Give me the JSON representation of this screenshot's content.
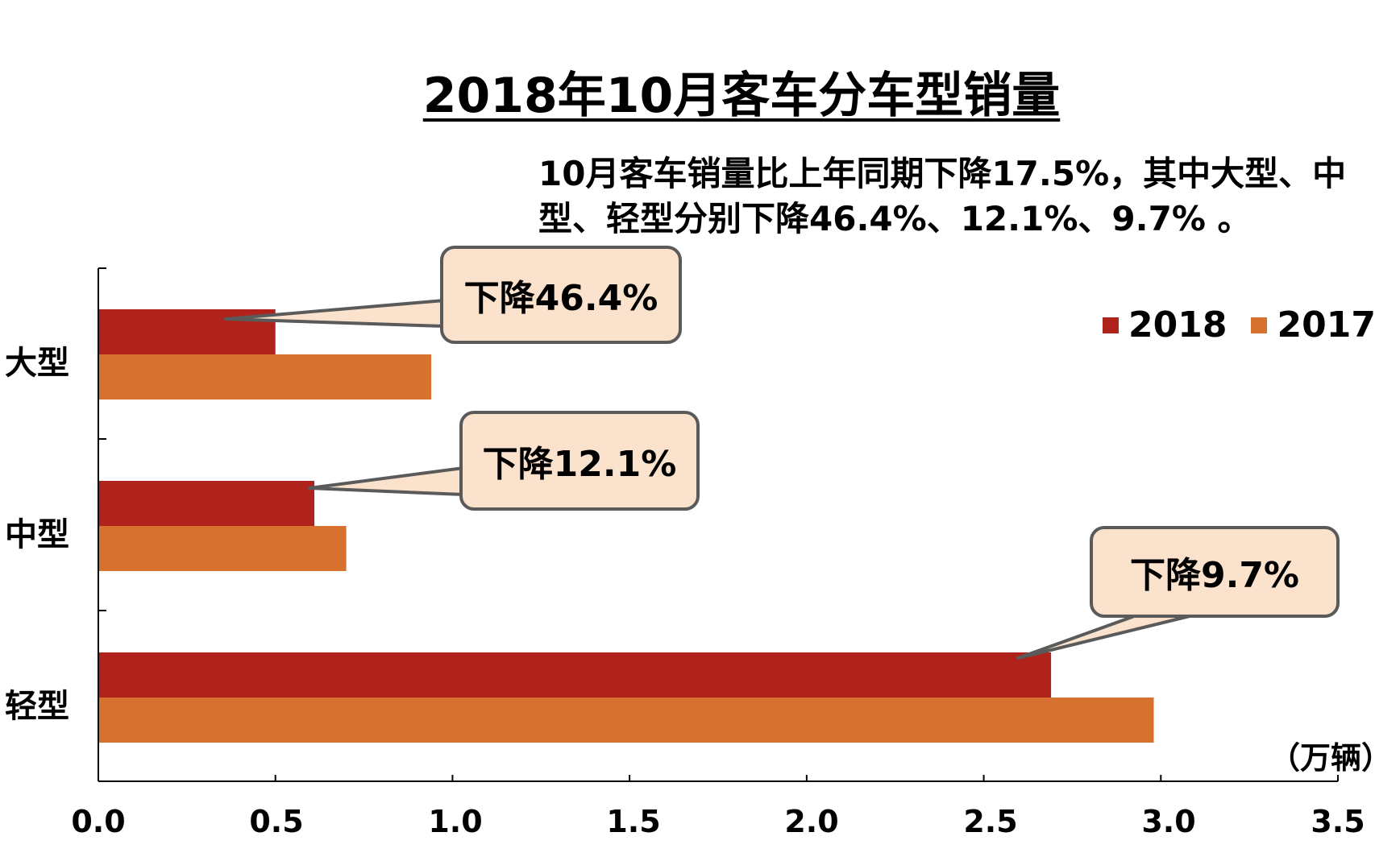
{
  "chart_data": {
    "type": "bar",
    "orientation": "horizontal",
    "title": "2018年10月客车分车型销量",
    "subtitle": "10月客车销量比上年同期下降17.5%，其中大型、中型、轻型分别下降46.4%、12.1%、9.7% 。",
    "categories": [
      "大型",
      "中型",
      "轻型"
    ],
    "series": [
      {
        "name": "2018",
        "values": [
          0.5,
          0.61,
          2.69
        ]
      },
      {
        "name": "2017",
        "values": [
          0.94,
          0.7,
          2.98
        ]
      }
    ],
    "xlim": [
      0.0,
      3.5
    ],
    "xticks": [
      "0.0",
      "0.5",
      "1.0",
      "1.5",
      "2.0",
      "2.5",
      "3.0",
      "3.5"
    ],
    "unit_label": "（万辆）",
    "legend": "top-right",
    "grid": false,
    "annotations": [
      {
        "text": "下降46.4%",
        "category": "大型"
      },
      {
        "text": "下降12.1%",
        "category": "中型"
      },
      {
        "text": "下降9.7%",
        "category": "轻型"
      }
    ]
  },
  "colors": {
    "series_2018": "#b0231c",
    "series_2017": "#d6712f",
    "callout_fill": "#fbe2cd",
    "callout_border": "#5a5a5a"
  }
}
